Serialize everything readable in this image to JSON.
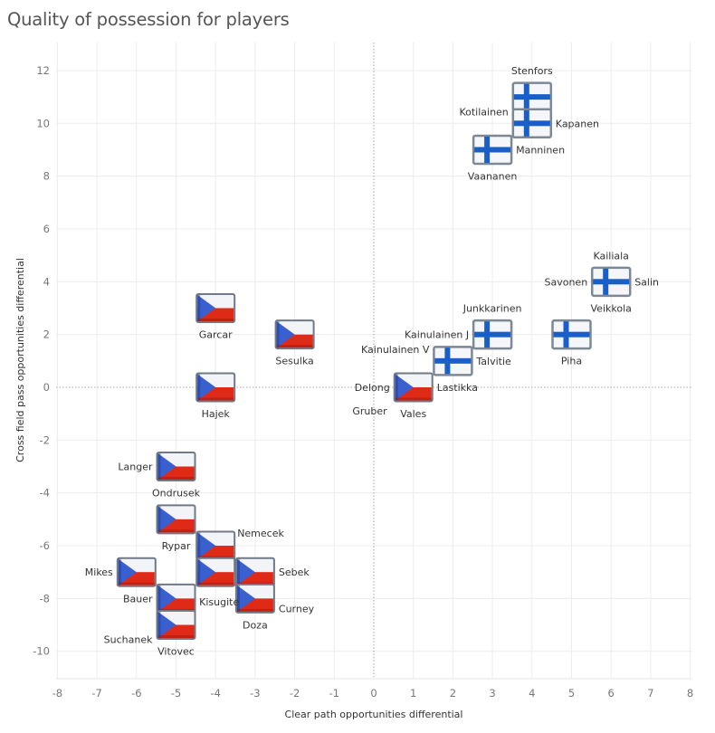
{
  "chart_data": {
    "type": "scatter",
    "title": "Quality of possession for players",
    "xlabel": "Clear path opportunities differential",
    "ylabel": "Cross field pass opportunities differential",
    "xlim": [
      -8,
      8
    ],
    "ylim": [
      -11,
      13
    ],
    "xticks": [
      -8,
      -7,
      -6,
      -5,
      -4,
      -3,
      -2,
      -1,
      0,
      1,
      2,
      3,
      4,
      5,
      6,
      7,
      8
    ],
    "yticks": [
      -10,
      -8,
      -6,
      -4,
      -2,
      0,
      2,
      4,
      6,
      8,
      10,
      12
    ],
    "grid": true,
    "reference_lines": {
      "x": 0,
      "y": 0,
      "style": "dotted"
    },
    "marker_types": {
      "FIN": {
        "name": "finland-flag",
        "colors": {
          "field": "#f4f6fa",
          "cross": "#1a5fc7",
          "border": "#7d8893"
        }
      },
      "CZE": {
        "name": "czech-flag",
        "colors": {
          "white": "#f2f4f8",
          "red": "#e02a18",
          "blue": "#3a5fcf",
          "border": "#7d8893"
        }
      }
    },
    "points": [
      {
        "x": 4,
        "y": 11,
        "team": "FIN",
        "labels": [
          {
            "text": "Stenfors",
            "pos": "top"
          }
        ]
      },
      {
        "x": 4,
        "y": 10,
        "team": "FIN",
        "labels": [
          {
            "text": "Kotilainen",
            "pos": "left-up"
          },
          {
            "text": "Kapanen",
            "pos": "right"
          }
        ]
      },
      {
        "x": 3,
        "y": 9,
        "team": "FIN",
        "labels": [
          {
            "text": "Manninen",
            "pos": "right"
          },
          {
            "text": "Vaananen",
            "pos": "bottom"
          }
        ]
      },
      {
        "x": 6,
        "y": 4,
        "team": "FIN",
        "labels": [
          {
            "text": "Kailiala",
            "pos": "top"
          },
          {
            "text": "Savonen",
            "pos": "left"
          },
          {
            "text": "Salin",
            "pos": "right"
          },
          {
            "text": "Veikkola",
            "pos": "bottom"
          }
        ]
      },
      {
        "x": 3,
        "y": 2,
        "team": "FIN",
        "labels": [
          {
            "text": "Junkkarinen",
            "pos": "top"
          },
          {
            "text": "Kainulainen J",
            "pos": "left"
          }
        ]
      },
      {
        "x": 5,
        "y": 2,
        "team": "FIN",
        "labels": [
          {
            "text": "Piha",
            "pos": "bottom"
          }
        ]
      },
      {
        "x": 2,
        "y": 1,
        "team": "FIN",
        "labels": [
          {
            "text": "Kainulainen V",
            "pos": "left-up"
          },
          {
            "text": "Talvitie",
            "pos": "right"
          }
        ]
      },
      {
        "x": 1,
        "y": 0,
        "team": "CZE",
        "labels": [
          {
            "text": "Delong",
            "pos": "left"
          },
          {
            "text": "Lastikka",
            "pos": "right"
          },
          {
            "text": "Gruber",
            "pos": "bottom-left"
          },
          {
            "text": "Vales",
            "pos": "bottom"
          }
        ]
      },
      {
        "x": -4,
        "y": 3,
        "team": "CZE",
        "labels": [
          {
            "text": "Garcar",
            "pos": "bottom"
          }
        ]
      },
      {
        "x": -2,
        "y": 2,
        "team": "CZE",
        "labels": [
          {
            "text": "Sesulka",
            "pos": "bottom"
          }
        ]
      },
      {
        "x": -4,
        "y": 0,
        "team": "CZE",
        "labels": [
          {
            "text": "Hajek",
            "pos": "bottom"
          }
        ]
      },
      {
        "x": -5,
        "y": -3,
        "team": "CZE",
        "labels": [
          {
            "text": "Langer",
            "pos": "left"
          },
          {
            "text": "Ondrusek",
            "pos": "bottom"
          }
        ]
      },
      {
        "x": -5,
        "y": -5,
        "team": "CZE",
        "labels": [
          {
            "text": "Rypar",
            "pos": "bottom"
          }
        ]
      },
      {
        "x": -4,
        "y": -6,
        "team": "CZE",
        "labels": [
          {
            "text": "Nemecek",
            "pos": "right-up"
          }
        ]
      },
      {
        "x": -6,
        "y": -7,
        "team": "CZE",
        "labels": [
          {
            "text": "Mikes",
            "pos": "left"
          }
        ]
      },
      {
        "x": -4,
        "y": -7,
        "team": "CZE",
        "labels": [
          {
            "text": "Kisugite",
            "pos": "bottom-tight"
          }
        ]
      },
      {
        "x": -3,
        "y": -7,
        "team": "CZE",
        "labels": [
          {
            "text": "Sebek",
            "pos": "right"
          }
        ]
      },
      {
        "x": -5,
        "y": -8,
        "team": "CZE",
        "labels": [
          {
            "text": "Bauer",
            "pos": "left"
          }
        ]
      },
      {
        "x": -3,
        "y": -8,
        "team": "CZE",
        "labels": [
          {
            "text": "Curney",
            "pos": "right-down"
          },
          {
            "text": "Doza",
            "pos": "bottom"
          }
        ]
      },
      {
        "x": -5,
        "y": -9,
        "team": "CZE",
        "labels": [
          {
            "text": "Suchanek",
            "pos": "left-down"
          },
          {
            "text": "Vitovec",
            "pos": "bottom"
          }
        ]
      }
    ]
  }
}
